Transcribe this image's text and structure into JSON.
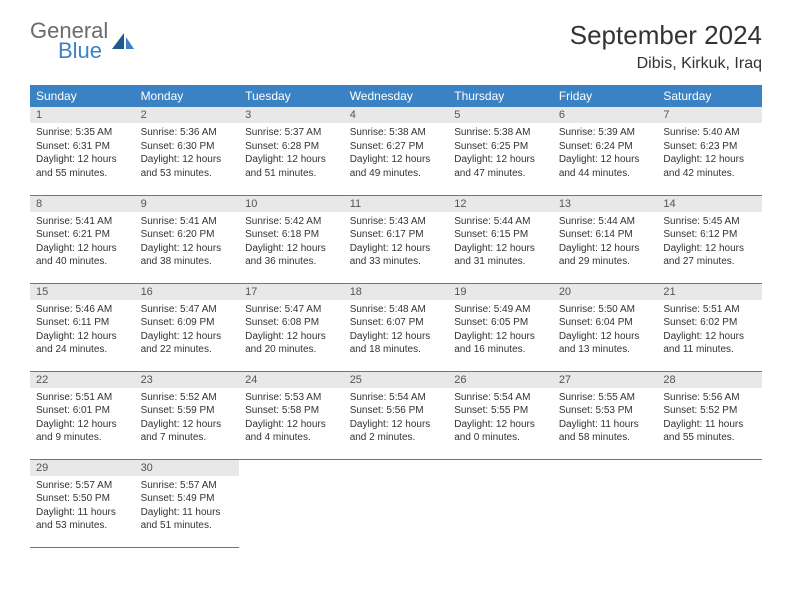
{
  "logo": {
    "text_gray": "General",
    "text_blue": "Blue"
  },
  "header": {
    "month_title": "September 2024",
    "location": "Dibis, Kirkuk, Iraq"
  },
  "weekdays": [
    "Sunday",
    "Monday",
    "Tuesday",
    "Wednesday",
    "Thursday",
    "Friday",
    "Saturday"
  ],
  "colors": {
    "header_bg": "#3b82c4",
    "header_text": "#ffffff",
    "daynum_bg": "#e8e8e8",
    "border": "#3b82c4",
    "logo_gray": "#6b6b6b",
    "logo_blue": "#3b82c4"
  },
  "weeks": [
    [
      {
        "num": "1",
        "sunrise": "Sunrise: 5:35 AM",
        "sunset": "Sunset: 6:31 PM",
        "daylight1": "Daylight: 12 hours",
        "daylight2": "and 55 minutes."
      },
      {
        "num": "2",
        "sunrise": "Sunrise: 5:36 AM",
        "sunset": "Sunset: 6:30 PM",
        "daylight1": "Daylight: 12 hours",
        "daylight2": "and 53 minutes."
      },
      {
        "num": "3",
        "sunrise": "Sunrise: 5:37 AM",
        "sunset": "Sunset: 6:28 PM",
        "daylight1": "Daylight: 12 hours",
        "daylight2": "and 51 minutes."
      },
      {
        "num": "4",
        "sunrise": "Sunrise: 5:38 AM",
        "sunset": "Sunset: 6:27 PM",
        "daylight1": "Daylight: 12 hours",
        "daylight2": "and 49 minutes."
      },
      {
        "num": "5",
        "sunrise": "Sunrise: 5:38 AM",
        "sunset": "Sunset: 6:25 PM",
        "daylight1": "Daylight: 12 hours",
        "daylight2": "and 47 minutes."
      },
      {
        "num": "6",
        "sunrise": "Sunrise: 5:39 AM",
        "sunset": "Sunset: 6:24 PM",
        "daylight1": "Daylight: 12 hours",
        "daylight2": "and 44 minutes."
      },
      {
        "num": "7",
        "sunrise": "Sunrise: 5:40 AM",
        "sunset": "Sunset: 6:23 PM",
        "daylight1": "Daylight: 12 hours",
        "daylight2": "and 42 minutes."
      }
    ],
    [
      {
        "num": "8",
        "sunrise": "Sunrise: 5:41 AM",
        "sunset": "Sunset: 6:21 PM",
        "daylight1": "Daylight: 12 hours",
        "daylight2": "and 40 minutes."
      },
      {
        "num": "9",
        "sunrise": "Sunrise: 5:41 AM",
        "sunset": "Sunset: 6:20 PM",
        "daylight1": "Daylight: 12 hours",
        "daylight2": "and 38 minutes."
      },
      {
        "num": "10",
        "sunrise": "Sunrise: 5:42 AM",
        "sunset": "Sunset: 6:18 PM",
        "daylight1": "Daylight: 12 hours",
        "daylight2": "and 36 minutes."
      },
      {
        "num": "11",
        "sunrise": "Sunrise: 5:43 AM",
        "sunset": "Sunset: 6:17 PM",
        "daylight1": "Daylight: 12 hours",
        "daylight2": "and 33 minutes."
      },
      {
        "num": "12",
        "sunrise": "Sunrise: 5:44 AM",
        "sunset": "Sunset: 6:15 PM",
        "daylight1": "Daylight: 12 hours",
        "daylight2": "and 31 minutes."
      },
      {
        "num": "13",
        "sunrise": "Sunrise: 5:44 AM",
        "sunset": "Sunset: 6:14 PM",
        "daylight1": "Daylight: 12 hours",
        "daylight2": "and 29 minutes."
      },
      {
        "num": "14",
        "sunrise": "Sunrise: 5:45 AM",
        "sunset": "Sunset: 6:12 PM",
        "daylight1": "Daylight: 12 hours",
        "daylight2": "and 27 minutes."
      }
    ],
    [
      {
        "num": "15",
        "sunrise": "Sunrise: 5:46 AM",
        "sunset": "Sunset: 6:11 PM",
        "daylight1": "Daylight: 12 hours",
        "daylight2": "and 24 minutes."
      },
      {
        "num": "16",
        "sunrise": "Sunrise: 5:47 AM",
        "sunset": "Sunset: 6:09 PM",
        "daylight1": "Daylight: 12 hours",
        "daylight2": "and 22 minutes."
      },
      {
        "num": "17",
        "sunrise": "Sunrise: 5:47 AM",
        "sunset": "Sunset: 6:08 PM",
        "daylight1": "Daylight: 12 hours",
        "daylight2": "and 20 minutes."
      },
      {
        "num": "18",
        "sunrise": "Sunrise: 5:48 AM",
        "sunset": "Sunset: 6:07 PM",
        "daylight1": "Daylight: 12 hours",
        "daylight2": "and 18 minutes."
      },
      {
        "num": "19",
        "sunrise": "Sunrise: 5:49 AM",
        "sunset": "Sunset: 6:05 PM",
        "daylight1": "Daylight: 12 hours",
        "daylight2": "and 16 minutes."
      },
      {
        "num": "20",
        "sunrise": "Sunrise: 5:50 AM",
        "sunset": "Sunset: 6:04 PM",
        "daylight1": "Daylight: 12 hours",
        "daylight2": "and 13 minutes."
      },
      {
        "num": "21",
        "sunrise": "Sunrise: 5:51 AM",
        "sunset": "Sunset: 6:02 PM",
        "daylight1": "Daylight: 12 hours",
        "daylight2": "and 11 minutes."
      }
    ],
    [
      {
        "num": "22",
        "sunrise": "Sunrise: 5:51 AM",
        "sunset": "Sunset: 6:01 PM",
        "daylight1": "Daylight: 12 hours",
        "daylight2": "and 9 minutes."
      },
      {
        "num": "23",
        "sunrise": "Sunrise: 5:52 AM",
        "sunset": "Sunset: 5:59 PM",
        "daylight1": "Daylight: 12 hours",
        "daylight2": "and 7 minutes."
      },
      {
        "num": "24",
        "sunrise": "Sunrise: 5:53 AM",
        "sunset": "Sunset: 5:58 PM",
        "daylight1": "Daylight: 12 hours",
        "daylight2": "and 4 minutes."
      },
      {
        "num": "25",
        "sunrise": "Sunrise: 5:54 AM",
        "sunset": "Sunset: 5:56 PM",
        "daylight1": "Daylight: 12 hours",
        "daylight2": "and 2 minutes."
      },
      {
        "num": "26",
        "sunrise": "Sunrise: 5:54 AM",
        "sunset": "Sunset: 5:55 PM",
        "daylight1": "Daylight: 12 hours",
        "daylight2": "and 0 minutes."
      },
      {
        "num": "27",
        "sunrise": "Sunrise: 5:55 AM",
        "sunset": "Sunset: 5:53 PM",
        "daylight1": "Daylight: 11 hours",
        "daylight2": "and 58 minutes."
      },
      {
        "num": "28",
        "sunrise": "Sunrise: 5:56 AM",
        "sunset": "Sunset: 5:52 PM",
        "daylight1": "Daylight: 11 hours",
        "daylight2": "and 55 minutes."
      }
    ],
    [
      {
        "num": "29",
        "sunrise": "Sunrise: 5:57 AM",
        "sunset": "Sunset: 5:50 PM",
        "daylight1": "Daylight: 11 hours",
        "daylight2": "and 53 minutes."
      },
      {
        "num": "30",
        "sunrise": "Sunrise: 5:57 AM",
        "sunset": "Sunset: 5:49 PM",
        "daylight1": "Daylight: 11 hours",
        "daylight2": "and 51 minutes."
      },
      null,
      null,
      null,
      null,
      null
    ]
  ]
}
